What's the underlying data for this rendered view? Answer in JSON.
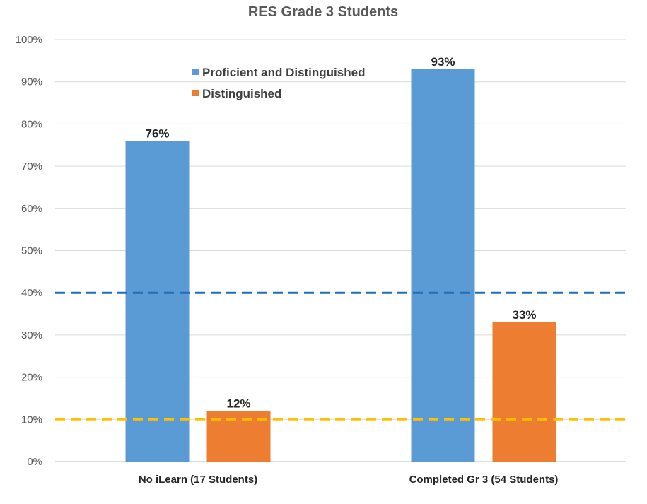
{
  "chart_data": {
    "type": "bar",
    "title": "RES Grade 3 Students",
    "xlabel": "",
    "ylabel": "",
    "categories": [
      "No iLearn (17 Students)",
      "Completed Gr 3 (54 Students)"
    ],
    "series": [
      {
        "name": "Proficient and Distinguished",
        "values": [
          76,
          93
        ],
        "color": "#5B9BD5"
      },
      {
        "name": "Distinguished",
        "values": [
          12,
          33
        ],
        "color": "#ED7D31"
      }
    ],
    "value_format": "percent",
    "data_labels": [
      "76%",
      "12%",
      "93%",
      "33%"
    ],
    "ylim": [
      0,
      100
    ],
    "y_ticks": [
      "0%",
      "10%",
      "20%",
      "30%",
      "40%",
      "50%",
      "60%",
      "70%",
      "80%",
      "90%",
      "100%"
    ],
    "grid": true,
    "legend": "top-center",
    "reference_lines": [
      {
        "value": 40,
        "color": "#1F6FB4",
        "style": "dashed"
      },
      {
        "value": 10,
        "color": "#FFC000",
        "style": "dashed"
      }
    ]
  }
}
